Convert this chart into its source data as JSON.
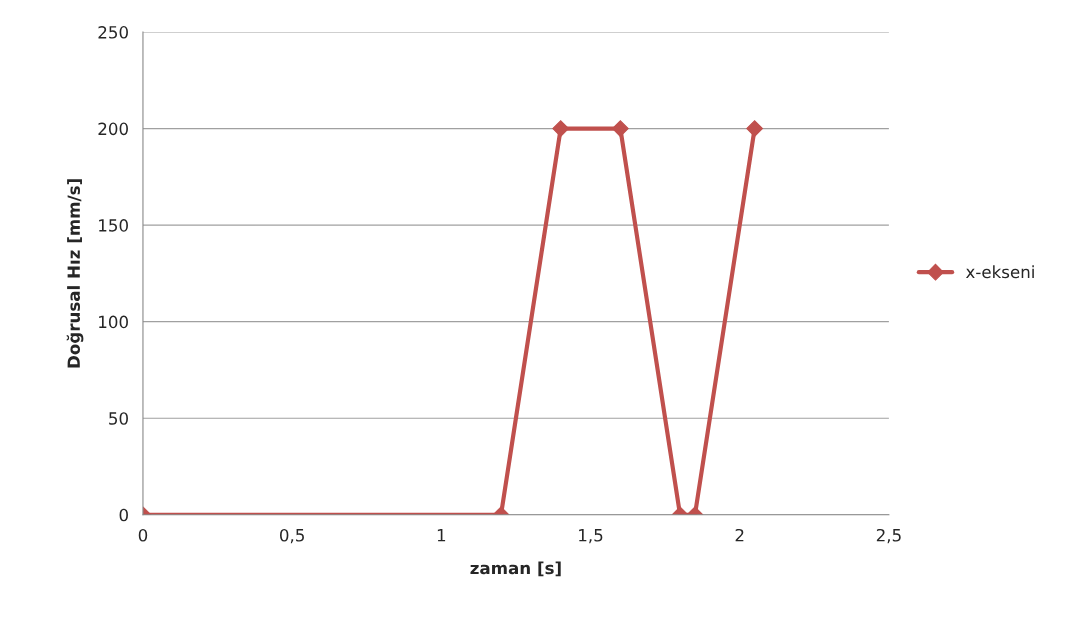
{
  "chart_data": {
    "type": "line",
    "xlabel": "zaman [s]",
    "ylabel": "Doğrusal Hız [mm/s]",
    "x": [
      0,
      1.2,
      1.4,
      1.6,
      1.8,
      1.85,
      2.05
    ],
    "series": [
      {
        "name": "x-ekseni",
        "color": "#c0504d",
        "values": [
          0,
          0,
          200,
          200,
          0,
          0,
          200
        ]
      }
    ],
    "xlim": [
      0,
      2.5
    ],
    "xticks": [
      0,
      {
        "value": 0.5,
        "label": "0,5"
      },
      1,
      {
        "value": 1.5,
        "label": "1,5"
      },
      2,
      {
        "value": 2.5,
        "label": "2,5"
      }
    ],
    "ylim": [
      0,
      250
    ],
    "yticks": [
      0,
      50,
      100,
      150,
      200,
      250
    ],
    "grid": "y",
    "legend": "right",
    "marker": "diamond",
    "line_style": "solid"
  }
}
